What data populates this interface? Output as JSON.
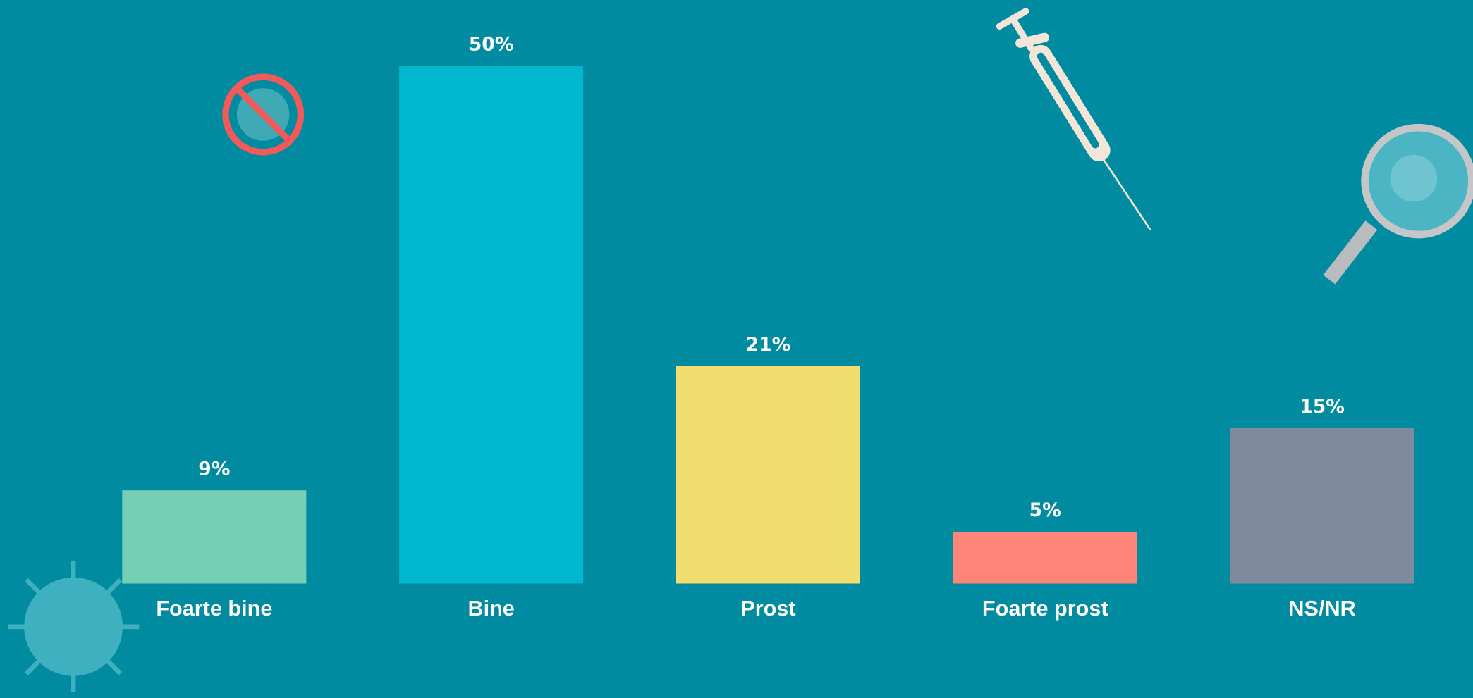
{
  "chart_data": {
    "type": "bar",
    "categories": [
      "Foarte bine",
      "Bine",
      "Prost",
      "Foarte prost",
      "NS/NR"
    ],
    "values": [
      9,
      50,
      21,
      5,
      15
    ],
    "value_labels": [
      "9%",
      "50%",
      "21%",
      "5%",
      "15%"
    ],
    "colors": [
      "#74cfb4",
      "#00b7cf",
      "#f0dd6e",
      "#fe8577",
      "#7f8a9e"
    ],
    "ylim": [
      0,
      50
    ]
  }
}
